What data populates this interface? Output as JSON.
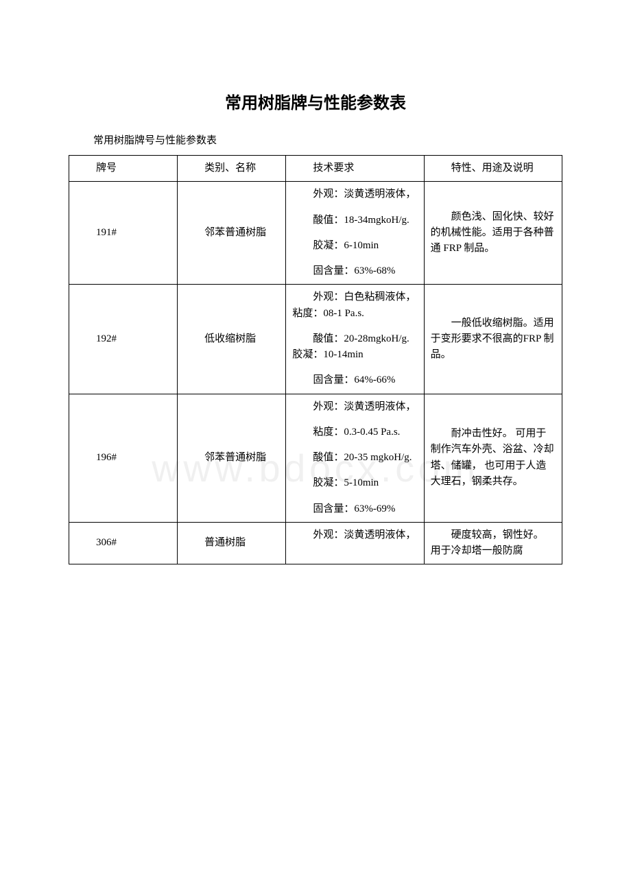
{
  "title": "常用树脂牌与性能参数表",
  "subtitle": "常用树脂牌号与性能参数表",
  "watermark": "www.bdocx.com",
  "headers": {
    "model": "牌号",
    "category": "类别、名称",
    "tech": "技术要求",
    "features": "特性、用途及说明"
  },
  "rows": [
    {
      "model": "191#",
      "category": "邻苯普通树脂",
      "tech": [
        "外观：淡黄透明液体，",
        "酸值：18-34mgkoH/g.",
        "胶凝：6-10min",
        "固含量：63%-68%"
      ],
      "features": "颜色浅、固化快、较好的机械性能。适用于各种普通 FRP 制品。"
    },
    {
      "model": "192#",
      "category": "低收缩树脂",
      "tech": [
        "外观：白色粘稠液体，粘度：08-1 Pa.s.",
        "酸值：20-28mgkoH/g. 胶凝：10-14min",
        "固含量：64%-66%"
      ],
      "features": "一般低收缩树脂。适用于变形要求不很高的FRP 制品。"
    },
    {
      "model": "196#",
      "category": "邻苯普通树脂",
      "tech": [
        "外观：淡黄透明液体，",
        "粘度：0.3-0.45 Pa.s.",
        "酸值：20-35 mgkoH/g.",
        "胶凝：5-10min",
        "固含量：63%-69%"
      ],
      "features": "耐冲击性好。 可用于制作汽车外壳、浴盆、冷却塔、储罐， 也可用于人造大理石，钢柔共存。"
    },
    {
      "model": "306#",
      "category": "普通树脂",
      "tech": [
        "外观：淡黄透明液体，"
      ],
      "features": "硬度较高，钢性好。 用于冷却塔一般防腐"
    }
  ],
  "colors": {
    "text": "#000000",
    "background": "#ffffff",
    "border": "#000000",
    "watermark": "rgba(0,0,0,0.06)"
  }
}
